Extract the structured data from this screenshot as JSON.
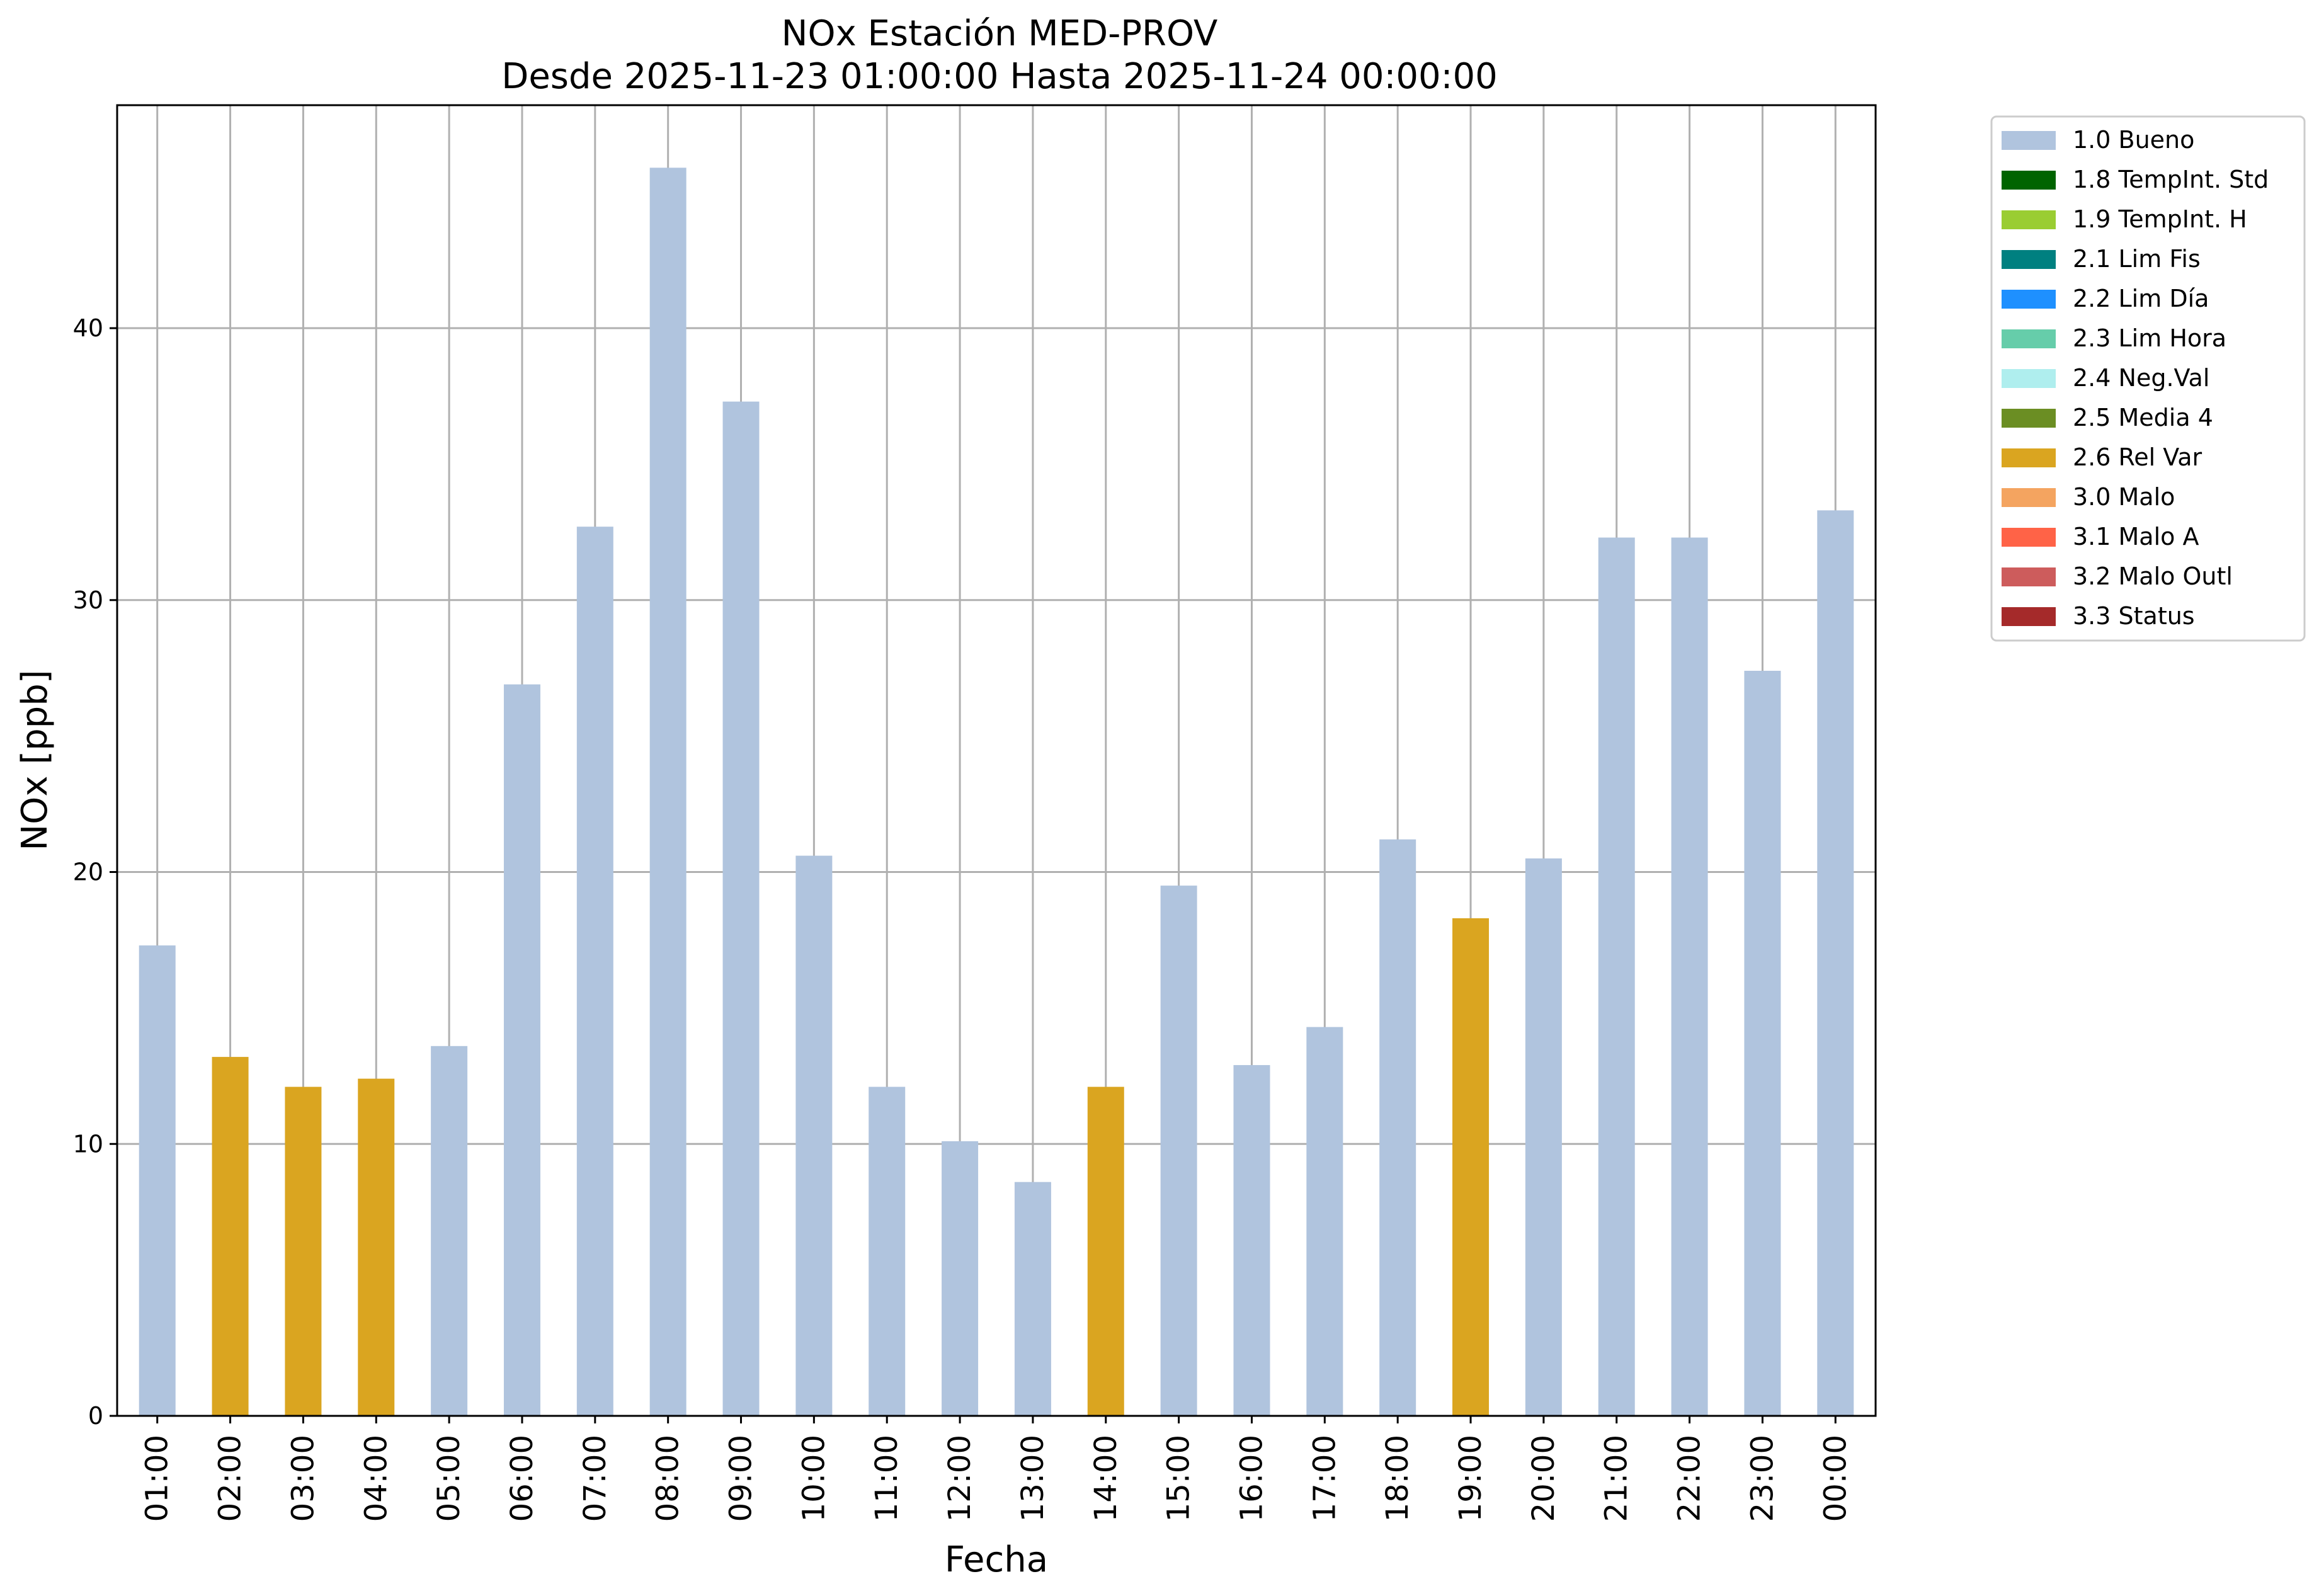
{
  "chart_data": {
    "type": "bar",
    "title": "NOx Estación MED-PROV",
    "subtitle": "Desde 2025-11-23 01:00:00 Hasta 2025-11-24 00:00:00",
    "xlabel": "Fecha",
    "ylabel": "NOx [ppb]",
    "ylim": [
      0,
      48.2
    ],
    "yticks": [
      0,
      10,
      20,
      30,
      40
    ],
    "grid": true,
    "legend_position": "outside-right",
    "categories": [
      "01:00",
      "02:00",
      "03:00",
      "04:00",
      "05:00",
      "06:00",
      "07:00",
      "08:00",
      "09:00",
      "10:00",
      "11:00",
      "12:00",
      "13:00",
      "14:00",
      "15:00",
      "16:00",
      "17:00",
      "18:00",
      "19:00",
      "20:00",
      "21:00",
      "22:00",
      "23:00",
      "00:00"
    ],
    "values": [
      17.3,
      13.2,
      12.1,
      12.4,
      13.6,
      26.9,
      32.7,
      45.9,
      37.3,
      20.6,
      12.1,
      10.1,
      8.6,
      12.1,
      19.5,
      12.9,
      14.3,
      21.2,
      18.3,
      20.5,
      32.3,
      32.3,
      27.4,
      33.3
    ],
    "flags": [
      "1.0 Bueno",
      "2.6 Rel Var",
      "2.6 Rel Var",
      "2.6 Rel Var",
      "1.0 Bueno",
      "1.0 Bueno",
      "1.0 Bueno",
      "1.0 Bueno",
      "1.0 Bueno",
      "1.0 Bueno",
      "1.0 Bueno",
      "1.0 Bueno",
      "1.0 Bueno",
      "2.6 Rel Var",
      "1.0 Bueno",
      "1.0 Bueno",
      "1.0 Bueno",
      "1.0 Bueno",
      "2.6 Rel Var",
      "1.0 Bueno",
      "1.0 Bueno",
      "1.0 Bueno",
      "1.0 Bueno",
      "1.0 Bueno"
    ],
    "legend": [
      {
        "label": "1.0 Bueno",
        "color": "#b0c4de"
      },
      {
        "label": "1.8 TempInt. Std",
        "color": "#006400"
      },
      {
        "label": "1.9 TempInt. H",
        "color": "#9acd32"
      },
      {
        "label": "2.1 Lim Fis",
        "color": "#008080"
      },
      {
        "label": "2.2 Lim Día",
        "color": "#1e90ff"
      },
      {
        "label": "2.3 Lim Hora",
        "color": "#66cdaa"
      },
      {
        "label": "2.4 Neg.Val",
        "color": "#afeeee"
      },
      {
        "label": "2.5 Media 4",
        "color": "#6b8e23"
      },
      {
        "label": "2.6 Rel Var",
        "color": "#daa520"
      },
      {
        "label": "3.0 Malo",
        "color": "#f4a460"
      },
      {
        "label": "3.1 Malo A",
        "color": "#ff6347"
      },
      {
        "label": "3.2 Malo Outl",
        "color": "#cd5c5c"
      },
      {
        "label": "3.3 Status",
        "color": "#a52a2a"
      }
    ]
  }
}
